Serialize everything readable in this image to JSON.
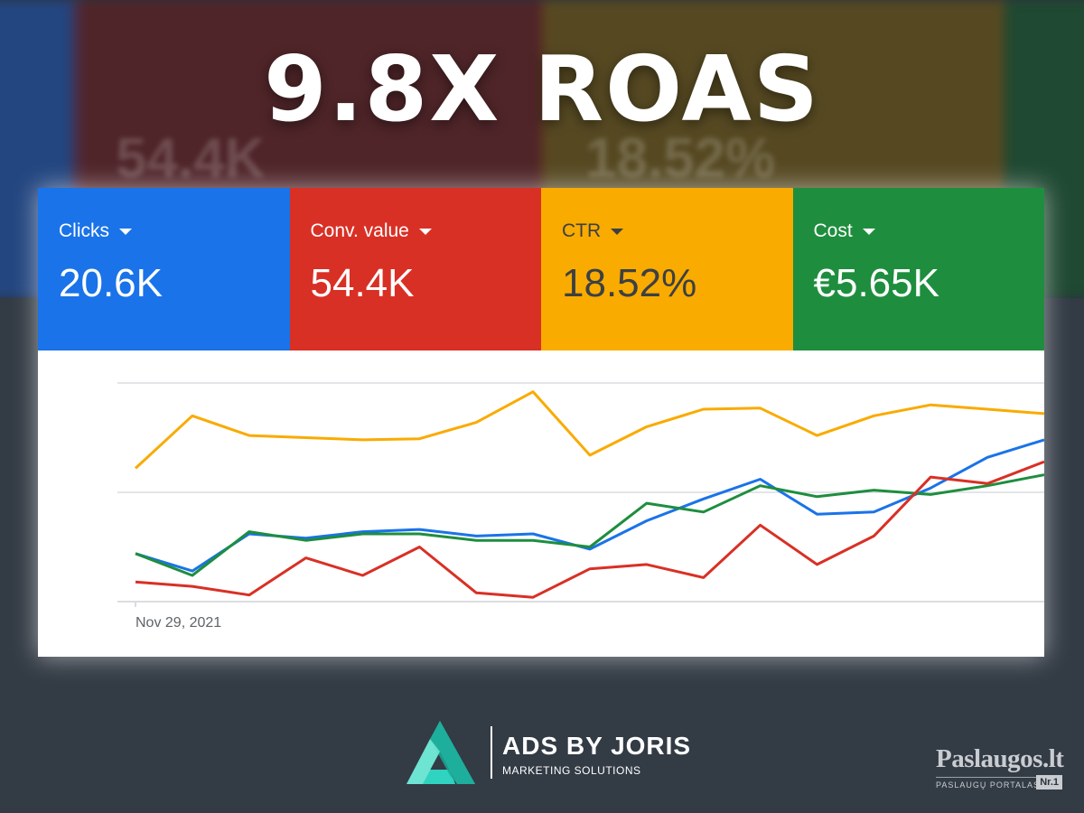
{
  "headline": "9.8X ROAS",
  "background_ghosts": [
    "54.4K",
    "18.52%"
  ],
  "metrics": [
    {
      "label": "Clicks",
      "value": "20.6K",
      "color": "#1a73e8"
    },
    {
      "label": "Conv. value",
      "value": "54.4K",
      "color": "#d93025"
    },
    {
      "label": "CTR",
      "value": "18.52%",
      "color": "#f9ab00"
    },
    {
      "label": "Cost",
      "value": "€5.65K",
      "color": "#1e8e3e"
    }
  ],
  "chart_data": {
    "type": "line",
    "title": "",
    "xlabel": "",
    "ylabel": "",
    "x_tick_labels": [
      "Nov 29, 2021"
    ],
    "grid": true,
    "ylim": [
      0,
      100
    ],
    "x": [
      1,
      2,
      3,
      4,
      5,
      6,
      7,
      8,
      9,
      10,
      11,
      12,
      13,
      14,
      15,
      16,
      17
    ],
    "series": [
      {
        "name": "CTR",
        "color": "#f9ab00",
        "values": [
          61,
          85,
          76,
          75,
          74,
          74.5,
          82,
          96,
          67,
          80,
          88,
          88.5,
          76,
          85,
          90,
          88,
          86
        ]
      },
      {
        "name": "Clicks",
        "color": "#1a73e8",
        "values": [
          22,
          14,
          31,
          29,
          32,
          33,
          30,
          31,
          24,
          37,
          47,
          56,
          40,
          41,
          52,
          66,
          74
        ]
      },
      {
        "name": "Cost",
        "color": "#1e8e3e",
        "values": [
          22,
          12,
          32,
          28,
          31,
          31,
          28,
          28,
          25,
          45,
          41,
          53,
          48,
          51,
          49,
          53,
          58
        ]
      },
      {
        "name": "Conv. value",
        "color": "#d93025",
        "values": [
          9,
          7,
          3,
          20,
          12,
          25,
          4,
          2,
          15,
          17,
          11,
          35,
          17,
          30,
          57,
          54,
          64
        ]
      }
    ]
  },
  "brand": {
    "name": "ADS BY JORIS",
    "tagline": "MARKETING SOLUTIONS"
  },
  "portal": {
    "name": "Paslaugos.lt",
    "subtitle": "PASLAUGŲ PORTALAS",
    "badge": "Nr.1"
  }
}
